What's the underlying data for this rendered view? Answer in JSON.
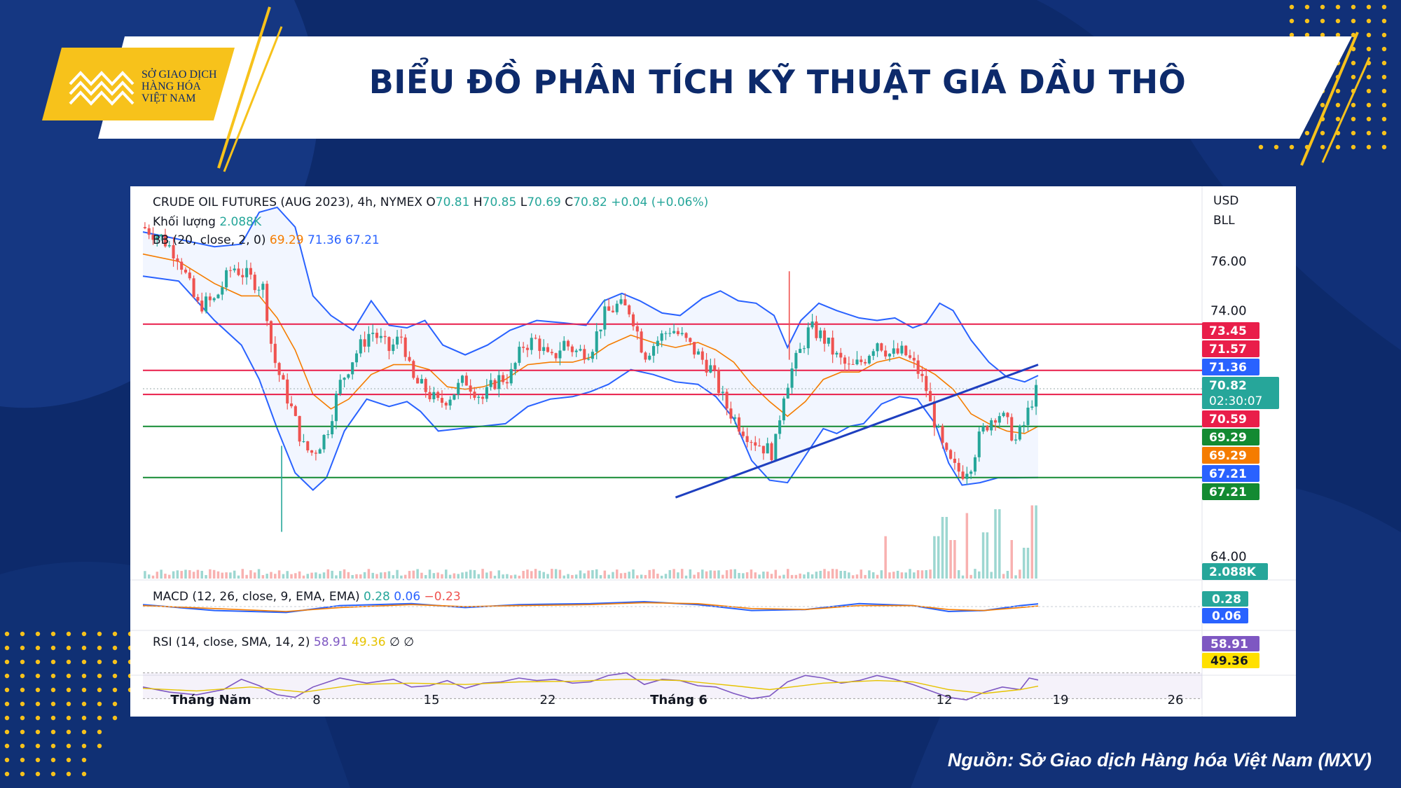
{
  "header": {
    "title": "BIỂU ĐỒ PHÂN TÍCH KỸ THUẬT GIÁ DẦU THÔ",
    "logo_lines": [
      "SỞ GIAO DỊCH",
      "HÀNG HÓA",
      "VIỆT NAM"
    ]
  },
  "footer": {
    "source": "Nguồn: Sở Giao dịch Hàng hóa Việt Nam (MXV)"
  },
  "colors": {
    "navy": "#0d2a6b",
    "gold": "#f7c21b",
    "up": "#26a69a",
    "down": "#ef5350",
    "resistance": "#e91e4a",
    "support": "#138a32",
    "bb": "#2962ff",
    "ma": "#f57c00",
    "trend": "#1e3fbf",
    "rsi": "#7e57c2"
  },
  "chart_data": {
    "type": "candlestick",
    "legend": {
      "title_line": "CRUDE OIL FUTURES (AUG 2023), 4h, NYMEX",
      "ohlc": [
        {
          "label": "O",
          "value": "70.81"
        },
        {
          "label": "H",
          "value": "70.85"
        },
        {
          "label": "L",
          "value": "70.69"
        },
        {
          "label": "C",
          "value": "70.82"
        }
      ],
      "change": "+0.04 (+0.06%)",
      "volume_label": "Khối lượng",
      "volume_value": "2.088K",
      "bb_label": "BB (20, close, 2, 0)",
      "bb_values": [
        "69.29",
        "71.36",
        "67.21"
      ],
      "macd_label": "MACD (12, 26, close, 9, EMA, EMA)",
      "macd_values": [
        "0.28",
        "0.06",
        "−0.23"
      ],
      "rsi_label": "RSI (14, close, SMA, 14, 2)",
      "rsi_values": [
        "58.91",
        "49.36",
        "∅",
        "∅"
      ]
    },
    "currency": [
      "USD",
      "BLL"
    ],
    "y_ticks": [
      76.0,
      74.0,
      64.0
    ],
    "y_tick_labels": [
      "76.00",
      "74.00",
      "64.00"
    ],
    "ylim": [
      63.1,
      78.2
    ],
    "x_labels": [
      "Tháng Năm",
      "8",
      "15",
      "22",
      "Tháng 6",
      "12",
      "19",
      "26"
    ],
    "price_levels": {
      "resistance": [
        73.45,
        71.57,
        70.59
      ],
      "support": [
        69.29,
        67.21
      ]
    },
    "trendline": [
      [
        0.595,
        66.4
      ],
      [
        1.0,
        71.8
      ]
    ],
    "axis_badges": [
      {
        "text": "73.45",
        "color": "#e91e4a"
      },
      {
        "text": "71.57",
        "color": "#e91e4a"
      },
      {
        "text": "71.36",
        "color": "#2962ff"
      },
      {
        "text": "70.82",
        "sub": "02:30:07",
        "color": "#26a69a"
      },
      {
        "text": "70.59",
        "color": "#e91e4a"
      },
      {
        "text": "69.29",
        "color": "#138a32"
      },
      {
        "text": "69.29",
        "color": "#f57c00"
      },
      {
        "text": "67.21",
        "color": "#2962ff"
      },
      {
        "text": "67.21",
        "color": "#138a32"
      }
    ],
    "volume_badge": "2.088K",
    "macd_badges": [
      {
        "text": "0.28",
        "color": "#26a69a"
      },
      {
        "text": "0.06",
        "color": "#2962ff"
      }
    ],
    "rsi_badges": [
      {
        "text": "58.91",
        "color": "#7e57c2"
      },
      {
        "text": "49.36",
        "color": "#ffe000",
        "dark": true
      }
    ],
    "close_path": [
      [
        0.0,
        77.4
      ],
      [
        0.02,
        77.0
      ],
      [
        0.04,
        76.2
      ],
      [
        0.06,
        74.2
      ],
      [
        0.08,
        74.4
      ],
      [
        0.1,
        75.8
      ],
      [
        0.12,
        75.3
      ],
      [
        0.135,
        74.9
      ],
      [
        0.145,
        72.2
      ],
      [
        0.155,
        71.1
      ],
      [
        0.165,
        70.1
      ],
      [
        0.18,
        68.4
      ],
      [
        0.19,
        68.2
      ],
      [
        0.205,
        69.0
      ],
      [
        0.22,
        71.0
      ],
      [
        0.235,
        72.1
      ],
      [
        0.255,
        73.2
      ],
      [
        0.275,
        72.4
      ],
      [
        0.29,
        73.0
      ],
      [
        0.3,
        71.2
      ],
      [
        0.315,
        70.8
      ],
      [
        0.33,
        70.2
      ],
      [
        0.345,
        70.6
      ],
      [
        0.36,
        71.2
      ],
      [
        0.38,
        70.4
      ],
      [
        0.395,
        71.2
      ],
      [
        0.41,
        71.3
      ],
      [
        0.425,
        72.6
      ],
      [
        0.44,
        72.8
      ],
      [
        0.455,
        71.9
      ],
      [
        0.47,
        72.7
      ],
      [
        0.485,
        72.3
      ],
      [
        0.5,
        72.4
      ],
      [
        0.515,
        73.8
      ],
      [
        0.53,
        74.2
      ],
      [
        0.545,
        74.0
      ],
      [
        0.56,
        72.2
      ],
      [
        0.575,
        72.8
      ],
      [
        0.59,
        73.3
      ],
      [
        0.605,
        72.8
      ],
      [
        0.62,
        72.2
      ],
      [
        0.635,
        71.6
      ],
      [
        0.65,
        70.2
      ],
      [
        0.665,
        69.4
      ],
      [
        0.68,
        68.8
      ],
      [
        0.695,
        68.4
      ],
      [
        0.705,
        68.2
      ],
      [
        0.715,
        70.6
      ],
      [
        0.725,
        71.6
      ],
      [
        0.735,
        72.4
      ],
      [
        0.745,
        73.3
      ],
      [
        0.76,
        72.9
      ],
      [
        0.775,
        72.1
      ],
      [
        0.79,
        71.6
      ],
      [
        0.805,
        72.0
      ],
      [
        0.82,
        72.8
      ],
      [
        0.835,
        72.2
      ],
      [
        0.85,
        72.3
      ],
      [
        0.865,
        71.6
      ],
      [
        0.875,
        70.8
      ],
      [
        0.885,
        69.4
      ],
      [
        0.895,
        68.2
      ],
      [
        0.905,
        67.6
      ],
      [
        0.915,
        67.4
      ],
      [
        0.925,
        67.8
      ],
      [
        0.935,
        68.9
      ],
      [
        0.945,
        69.5
      ],
      [
        0.955,
        69.9
      ],
      [
        0.965,
        69.4
      ],
      [
        0.975,
        68.7
      ],
      [
        0.985,
        69.4
      ],
      [
        0.992,
        70.3
      ],
      [
        1.0,
        70.82
      ]
    ],
    "bb_upper_path": [
      [
        0.0,
        77.2
      ],
      [
        0.04,
        76.9
      ],
      [
        0.08,
        76.6
      ],
      [
        0.11,
        76.7
      ],
      [
        0.13,
        78.0
      ],
      [
        0.15,
        78.2
      ],
      [
        0.17,
        77.4
      ],
      [
        0.19,
        74.6
      ],
      [
        0.21,
        73.8
      ],
      [
        0.235,
        73.2
      ],
      [
        0.255,
        74.4
      ],
      [
        0.275,
        73.4
      ],
      [
        0.295,
        73.3
      ],
      [
        0.315,
        73.6
      ],
      [
        0.335,
        72.6
      ],
      [
        0.36,
        72.2
      ],
      [
        0.385,
        72.6
      ],
      [
        0.41,
        73.2
      ],
      [
        0.44,
        73.6
      ],
      [
        0.47,
        73.5
      ],
      [
        0.495,
        73.4
      ],
      [
        0.515,
        74.4
      ],
      [
        0.535,
        74.7
      ],
      [
        0.555,
        74.4
      ],
      [
        0.58,
        73.9
      ],
      [
        0.6,
        73.8
      ],
      [
        0.625,
        74.5
      ],
      [
        0.645,
        74.8
      ],
      [
        0.665,
        74.4
      ],
      [
        0.685,
        74.3
      ],
      [
        0.705,
        73.8
      ],
      [
        0.72,
        72.5
      ],
      [
        0.735,
        73.6
      ],
      [
        0.755,
        74.3
      ],
      [
        0.775,
        74.0
      ],
      [
        0.8,
        73.7
      ],
      [
        0.82,
        73.6
      ],
      [
        0.84,
        73.7
      ],
      [
        0.86,
        73.3
      ],
      [
        0.875,
        73.5
      ],
      [
        0.89,
        74.3
      ],
      [
        0.905,
        74.0
      ],
      [
        0.925,
        72.8
      ],
      [
        0.945,
        71.9
      ],
      [
        0.965,
        71.3
      ],
      [
        0.985,
        71.1
      ],
      [
        1.0,
        71.36
      ]
    ],
    "bb_lower_path": [
      [
        0.0,
        75.4
      ],
      [
        0.04,
        75.2
      ],
      [
        0.08,
        73.6
      ],
      [
        0.11,
        72.6
      ],
      [
        0.13,
        71.2
      ],
      [
        0.15,
        69.2
      ],
      [
        0.17,
        67.4
      ],
      [
        0.19,
        66.7
      ],
      [
        0.205,
        67.2
      ],
      [
        0.225,
        69.1
      ],
      [
        0.25,
        70.4
      ],
      [
        0.275,
        70.1
      ],
      [
        0.295,
        70.3
      ],
      [
        0.31,
        69.9
      ],
      [
        0.33,
        69.1
      ],
      [
        0.355,
        69.2
      ],
      [
        0.38,
        69.3
      ],
      [
        0.405,
        69.4
      ],
      [
        0.43,
        70.1
      ],
      [
        0.455,
        70.4
      ],
      [
        0.48,
        70.5
      ],
      [
        0.5,
        70.7
      ],
      [
        0.52,
        71.0
      ],
      [
        0.545,
        71.6
      ],
      [
        0.57,
        71.4
      ],
      [
        0.595,
        71.1
      ],
      [
        0.62,
        71.0
      ],
      [
        0.64,
        70.5
      ],
      [
        0.66,
        69.6
      ],
      [
        0.68,
        67.9
      ],
      [
        0.7,
        67.1
      ],
      [
        0.72,
        67.0
      ],
      [
        0.74,
        68.1
      ],
      [
        0.76,
        69.2
      ],
      [
        0.775,
        69.0
      ],
      [
        0.79,
        69.3
      ],
      [
        0.805,
        69.4
      ],
      [
        0.825,
        70.2
      ],
      [
        0.845,
        70.5
      ],
      [
        0.865,
        70.4
      ],
      [
        0.885,
        69.4
      ],
      [
        0.9,
        67.8
      ],
      [
        0.915,
        66.9
      ],
      [
        0.935,
        67.0
      ],
      [
        0.955,
        67.2
      ],
      [
        0.975,
        67.2
      ],
      [
        1.0,
        67.21
      ]
    ],
    "bb_basis_path": [
      [
        0.0,
        76.3
      ],
      [
        0.04,
        76.0
      ],
      [
        0.08,
        75.1
      ],
      [
        0.11,
        74.6
      ],
      [
        0.13,
        74.6
      ],
      [
        0.15,
        73.7
      ],
      [
        0.17,
        72.4
      ],
      [
        0.19,
        70.6
      ],
      [
        0.21,
        70.0
      ],
      [
        0.23,
        70.4
      ],
      [
        0.255,
        71.4
      ],
      [
        0.28,
        71.8
      ],
      [
        0.3,
        71.8
      ],
      [
        0.32,
        71.6
      ],
      [
        0.34,
        70.9
      ],
      [
        0.36,
        70.8
      ],
      [
        0.38,
        70.9
      ],
      [
        0.405,
        71.2
      ],
      [
        0.43,
        71.8
      ],
      [
        0.455,
        71.9
      ],
      [
        0.48,
        71.9
      ],
      [
        0.5,
        72.1
      ],
      [
        0.52,
        72.6
      ],
      [
        0.545,
        73.0
      ],
      [
        0.57,
        72.7
      ],
      [
        0.595,
        72.5
      ],
      [
        0.62,
        72.7
      ],
      [
        0.64,
        72.4
      ],
      [
        0.66,
        71.9
      ],
      [
        0.68,
        71.0
      ],
      [
        0.7,
        70.3
      ],
      [
        0.72,
        69.7
      ],
      [
        0.74,
        70.3
      ],
      [
        0.76,
        71.2
      ],
      [
        0.78,
        71.5
      ],
      [
        0.8,
        71.5
      ],
      [
        0.82,
        71.9
      ],
      [
        0.845,
        72.1
      ],
      [
        0.865,
        71.8
      ],
      [
        0.885,
        71.4
      ],
      [
        0.905,
        70.8
      ],
      [
        0.925,
        69.8
      ],
      [
        0.945,
        69.4
      ],
      [
        0.965,
        69.1
      ],
      [
        0.985,
        69.0
      ],
      [
        1.0,
        69.29
      ]
    ],
    "volume_spikes": [
      [
        0.83,
        0.55
      ],
      [
        0.885,
        0.55
      ],
      [
        0.895,
        0.8
      ],
      [
        0.905,
        0.5
      ],
      [
        0.92,
        0.85
      ],
      [
        0.94,
        0.6
      ],
      [
        0.955,
        0.9
      ],
      [
        0.97,
        0.5
      ],
      [
        0.985,
        0.4
      ],
      [
        0.995,
        0.95
      ]
    ],
    "rsi_path": [
      [
        0.0,
        48
      ],
      [
        0.03,
        40
      ],
      [
        0.06,
        36
      ],
      [
        0.09,
        44
      ],
      [
        0.11,
        60
      ],
      [
        0.13,
        50
      ],
      [
        0.15,
        36
      ],
      [
        0.17,
        32
      ],
      [
        0.19,
        48
      ],
      [
        0.22,
        62
      ],
      [
        0.25,
        54
      ],
      [
        0.28,
        60
      ],
      [
        0.3,
        48
      ],
      [
        0.32,
        50
      ],
      [
        0.34,
        58
      ],
      [
        0.36,
        46
      ],
      [
        0.38,
        54
      ],
      [
        0.4,
        56
      ],
      [
        0.42,
        62
      ],
      [
        0.44,
        58
      ],
      [
        0.46,
        60
      ],
      [
        0.48,
        54
      ],
      [
        0.5,
        56
      ],
      [
        0.52,
        66
      ],
      [
        0.54,
        70
      ],
      [
        0.56,
        52
      ],
      [
        0.58,
        60
      ],
      [
        0.6,
        58
      ],
      [
        0.62,
        50
      ],
      [
        0.64,
        48
      ],
      [
        0.66,
        38
      ],
      [
        0.68,
        30
      ],
      [
        0.7,
        34
      ],
      [
        0.72,
        56
      ],
      [
        0.74,
        66
      ],
      [
        0.76,
        62
      ],
      [
        0.78,
        54
      ],
      [
        0.8,
        58
      ],
      [
        0.82,
        66
      ],
      [
        0.84,
        60
      ],
      [
        0.86,
        52
      ],
      [
        0.88,
        42
      ],
      [
        0.9,
        32
      ],
      [
        0.92,
        28
      ],
      [
        0.94,
        40
      ],
      [
        0.96,
        48
      ],
      [
        0.98,
        44
      ],
      [
        0.99,
        62
      ],
      [
        1.0,
        58.91
      ]
    ],
    "rsi_ma_path": [
      [
        0.0,
        46
      ],
      [
        0.06,
        42
      ],
      [
        0.12,
        48
      ],
      [
        0.18,
        40
      ],
      [
        0.24,
        52
      ],
      [
        0.3,
        54
      ],
      [
        0.36,
        52
      ],
      [
        0.42,
        56
      ],
      [
        0.48,
        57
      ],
      [
        0.54,
        60
      ],
      [
        0.6,
        58
      ],
      [
        0.66,
        50
      ],
      [
        0.7,
        44
      ],
      [
        0.76,
        54
      ],
      [
        0.82,
        58
      ],
      [
        0.86,
        56
      ],
      [
        0.9,
        44
      ],
      [
        0.94,
        38
      ],
      [
        0.98,
        44
      ],
      [
        1.0,
        49.36
      ]
    ],
    "macd_path": [
      [
        0.0,
        0.2
      ],
      [
        0.08,
        -0.4
      ],
      [
        0.16,
        -0.6
      ],
      [
        0.22,
        0.1
      ],
      [
        0.3,
        0.3
      ],
      [
        0.36,
        -0.1
      ],
      [
        0.42,
        0.2
      ],
      [
        0.5,
        0.3
      ],
      [
        0.56,
        0.5
      ],
      [
        0.62,
        0.2
      ],
      [
        0.68,
        -0.4
      ],
      [
        0.74,
        -0.3
      ],
      [
        0.8,
        0.3
      ],
      [
        0.86,
        0.1
      ],
      [
        0.9,
        -0.5
      ],
      [
        0.94,
        -0.4
      ],
      [
        0.98,
        0.1
      ],
      [
        1.0,
        0.28
      ]
    ],
    "macd_signal_path": [
      [
        0.0,
        0.1
      ],
      [
        0.08,
        -0.2
      ],
      [
        0.16,
        -0.5
      ],
      [
        0.22,
        -0.1
      ],
      [
        0.3,
        0.2
      ],
      [
        0.36,
        0.0
      ],
      [
        0.42,
        0.1
      ],
      [
        0.5,
        0.2
      ],
      [
        0.56,
        0.4
      ],
      [
        0.62,
        0.3
      ],
      [
        0.68,
        -0.2
      ],
      [
        0.74,
        -0.3
      ],
      [
        0.8,
        0.1
      ],
      [
        0.86,
        0.1
      ],
      [
        0.9,
        -0.3
      ],
      [
        0.94,
        -0.4
      ],
      [
        0.98,
        -0.1
      ],
      [
        1.0,
        0.06
      ]
    ]
  }
}
